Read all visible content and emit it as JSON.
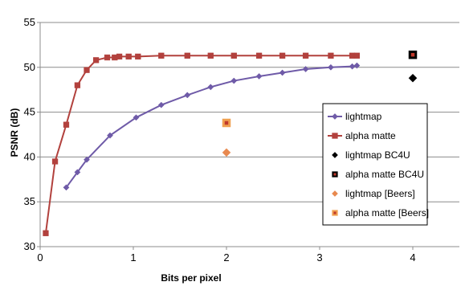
{
  "chart_data": {
    "type": "scatter",
    "xlabel": "Bits per pixel",
    "ylabel": "PSNR (dB)",
    "xlim": [
      0,
      4.5
    ],
    "ylim": [
      30,
      55
    ],
    "x_ticks": [
      0,
      1,
      2,
      3,
      4
    ],
    "y_ticks": [
      30,
      35,
      40,
      45,
      50,
      55
    ],
    "grid": "horizontal",
    "legend_position": "right",
    "series": [
      {
        "name": "lightmap",
        "style": "line",
        "marker": "diamond",
        "color": "#6f5ba8",
        "x": [
          0.28,
          0.4,
          0.5,
          0.75,
          1.03,
          1.3,
          1.58,
          1.83,
          2.08,
          2.35,
          2.6,
          2.85,
          3.12,
          3.35,
          3.4
        ],
        "y": [
          36.6,
          38.3,
          39.7,
          42.4,
          44.4,
          45.8,
          46.9,
          47.8,
          48.5,
          49.0,
          49.4,
          49.8,
          50.0,
          50.1,
          50.2
        ]
      },
      {
        "name": "alpha matte",
        "style": "line",
        "marker": "square",
        "color": "#b2413d",
        "x": [
          0.06,
          0.16,
          0.28,
          0.4,
          0.5,
          0.6,
          0.72,
          0.8,
          0.85,
          0.95,
          1.05,
          1.3,
          1.58,
          1.83,
          2.08,
          2.35,
          2.6,
          2.85,
          3.12,
          3.35,
          3.4
        ],
        "y": [
          31.5,
          39.5,
          43.6,
          48.0,
          49.7,
          50.8,
          51.1,
          51.1,
          51.2,
          51.2,
          51.2,
          51.3,
          51.3,
          51.3,
          51.3,
          51.3,
          51.3,
          51.3,
          51.3,
          51.3,
          51.3
        ]
      },
      {
        "name": "lightmap BC4U",
        "style": "point",
        "marker": "diamond",
        "color": "#000000",
        "x": [
          4.0
        ],
        "y": [
          48.8
        ]
      },
      {
        "name": "alpha matte BC4U",
        "style": "point",
        "marker": "square",
        "color": "#000000",
        "fill": "#c0392b",
        "x": [
          4.0
        ],
        "y": [
          51.4
        ]
      },
      {
        "name": "lightmap [Beers]",
        "style": "point",
        "marker": "diamond",
        "color": "#e8894f",
        "x": [
          2.0
        ],
        "y": [
          40.5
        ]
      },
      {
        "name": "alpha matte [Beers]",
        "style": "point",
        "marker": "square",
        "color": "#f0a050",
        "fill": "#c0392b",
        "x": [
          2.0
        ],
        "y": [
          43.8
        ]
      }
    ]
  }
}
